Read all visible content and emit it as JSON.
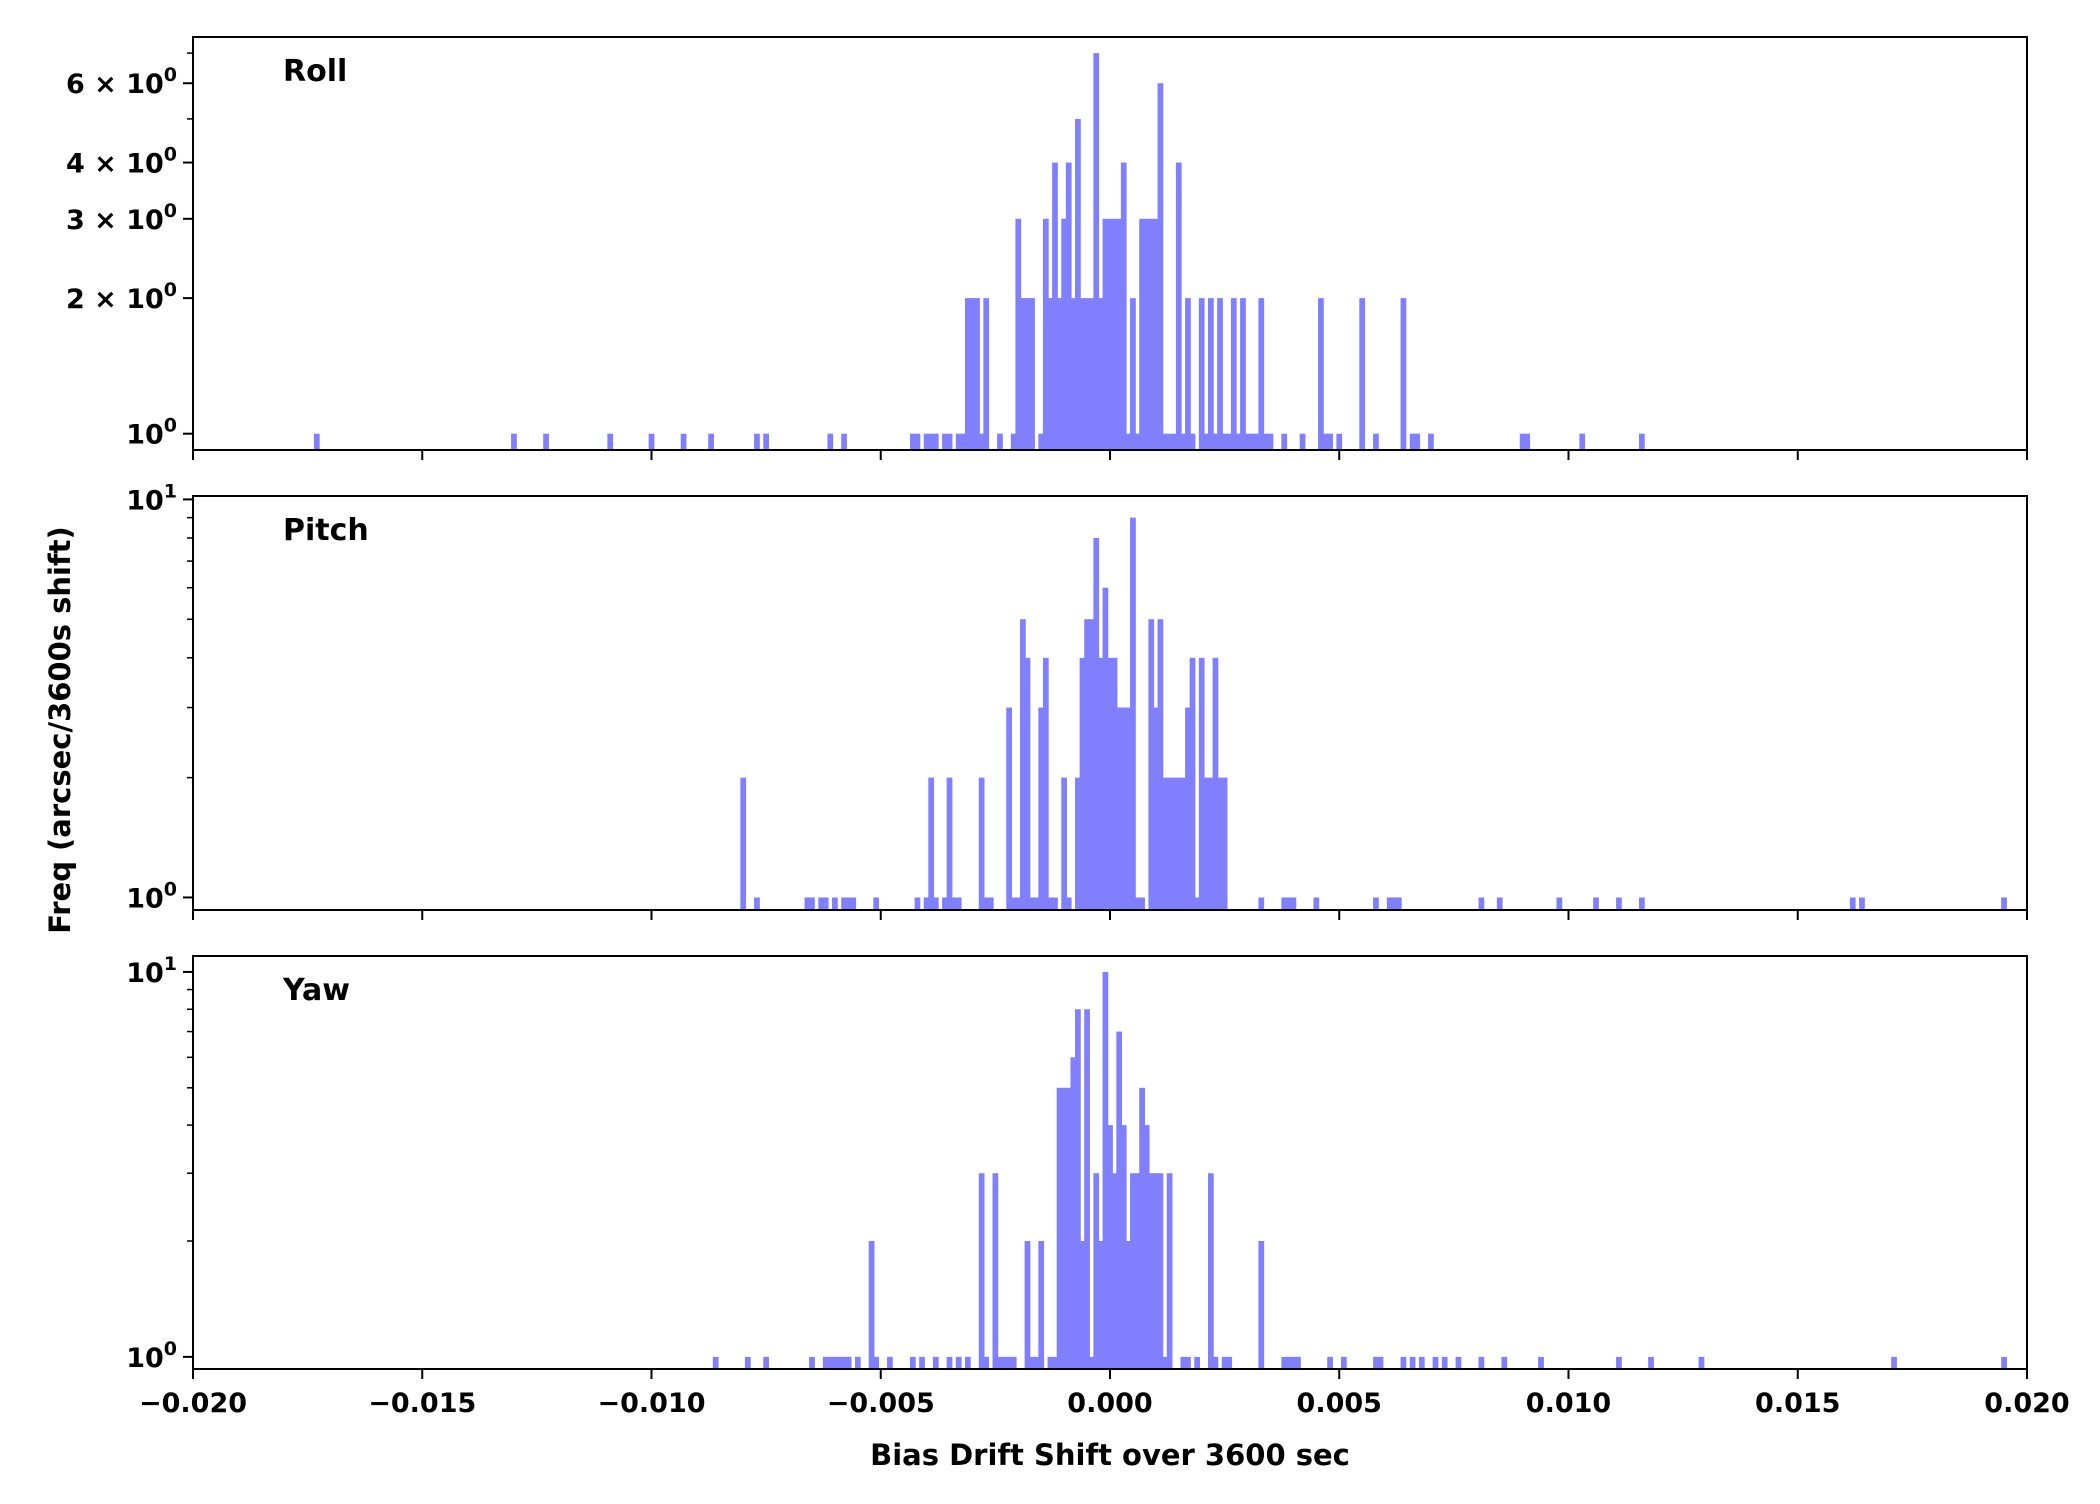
{
  "chart_data": {
    "type": "bar",
    "xlabel": "Bias Drift Shift over 3600 sec",
    "ylabel": "Freq (arcsec/3600s shift)",
    "xlim": [
      -0.02,
      0.02
    ],
    "x_ticks": [
      -0.02,
      -0.015,
      -0.01,
      -0.005,
      0.0,
      0.005,
      0.01,
      0.015,
      0.02
    ],
    "x_tick_labels": [
      "−0.020",
      "−0.015",
      "−0.010",
      "−0.005",
      "0.000",
      "0.005",
      "0.010",
      "0.015",
      "0.020"
    ],
    "bar_color": "#8080ff",
    "bin_width": 0.0001333,
    "y_scale": "log",
    "grid": false,
    "panels": [
      {
        "title": "Roll",
        "ylim": [
          0.92,
          7.6
        ],
        "y_ticks": [
          {
            "value": 1,
            "base": "10",
            "exp": "0"
          },
          {
            "value": 2,
            "coef": "2",
            "base": "10",
            "exp": "0"
          },
          {
            "value": 3,
            "coef": "3",
            "base": "10",
            "exp": "0"
          },
          {
            "value": 4,
            "coef": "4",
            "base": "10",
            "exp": "0"
          },
          {
            "value": 6,
            "coef": "6",
            "base": "10",
            "exp": "0"
          }
        ],
        "minor_ticks": [
          5,
          7
        ],
        "bins": [
          [
            -0.0173,
            1
          ],
          [
            -0.013,
            1
          ],
          [
            -0.0123,
            1
          ],
          [
            -0.0109,
            1
          ],
          [
            -0.01,
            1
          ],
          [
            -0.0093,
            1
          ],
          [
            -0.0087,
            1
          ],
          [
            -0.0077,
            1
          ],
          [
            -0.0075,
            1
          ],
          [
            -0.0061,
            1
          ],
          [
            -0.0058,
            1
          ],
          [
            -0.0043,
            1
          ],
          [
            -0.0042,
            1
          ],
          [
            -0.004,
            1
          ],
          [
            -0.0039,
            1
          ],
          [
            -0.0038,
            1
          ],
          [
            -0.0036,
            1
          ],
          [
            -0.0035,
            1
          ],
          [
            -0.0033,
            1
          ],
          [
            -0.0032,
            1
          ],
          [
            -0.0031,
            2
          ],
          [
            -0.003,
            2
          ],
          [
            -0.0029,
            2
          ],
          [
            -0.0028,
            1
          ],
          [
            -0.0027,
            2
          ],
          [
            -0.0024,
            1
          ],
          [
            -0.0021,
            1
          ],
          [
            -0.002,
            3
          ],
          [
            -0.0019,
            2
          ],
          [
            -0.0018,
            2
          ],
          [
            -0.0017,
            2
          ],
          [
            -0.0015,
            1
          ],
          [
            -0.0014,
            3
          ],
          [
            -0.0013,
            2
          ],
          [
            -0.0012,
            4
          ],
          [
            -0.0011,
            2
          ],
          [
            -0.001,
            3
          ],
          [
            -0.0009,
            4
          ],
          [
            -0.0008,
            2
          ],
          [
            -0.0007,
            5
          ],
          [
            -0.0006,
            2
          ],
          [
            -0.0005,
            2
          ],
          [
            -0.0004,
            2
          ],
          [
            -0.0003,
            7
          ],
          [
            -0.0002,
            2
          ],
          [
            -0.0001,
            3
          ],
          [
            0.0,
            3
          ],
          [
            0.0001,
            3
          ],
          [
            0.0002,
            3
          ],
          [
            0.0003,
            4
          ],
          [
            0.0004,
            1
          ],
          [
            0.0005,
            2
          ],
          [
            0.0006,
            1
          ],
          [
            0.0007,
            3
          ],
          [
            0.0008,
            3
          ],
          [
            0.0009,
            3
          ],
          [
            0.001,
            3
          ],
          [
            0.0011,
            6
          ],
          [
            0.0012,
            1
          ],
          [
            0.0013,
            1
          ],
          [
            0.0014,
            1
          ],
          [
            0.0015,
            4
          ],
          [
            0.0016,
            1
          ],
          [
            0.0017,
            2
          ],
          [
            0.0018,
            1
          ],
          [
            0.002,
            2
          ],
          [
            0.0021,
            1
          ],
          [
            0.0022,
            2
          ],
          [
            0.0023,
            1
          ],
          [
            0.0024,
            2
          ],
          [
            0.0025,
            1
          ],
          [
            0.0026,
            1
          ],
          [
            0.0027,
            2
          ],
          [
            0.0028,
            1
          ],
          [
            0.0029,
            2
          ],
          [
            0.003,
            1
          ],
          [
            0.0031,
            1
          ],
          [
            0.0032,
            1
          ],
          [
            0.0033,
            2
          ],
          [
            0.0034,
            1
          ],
          [
            0.0035,
            1
          ],
          [
            0.0038,
            1
          ],
          [
            0.0042,
            1
          ],
          [
            0.0046,
            2
          ],
          [
            0.0047,
            1
          ],
          [
            0.0048,
            1
          ],
          [
            0.005,
            1
          ],
          [
            0.0055,
            2
          ],
          [
            0.0058,
            1
          ],
          [
            0.0064,
            2
          ],
          [
            0.0066,
            1
          ],
          [
            0.0067,
            1
          ],
          [
            0.007,
            1
          ],
          [
            0.009,
            1
          ],
          [
            0.0091,
            1
          ],
          [
            0.0103,
            1
          ],
          [
            0.0116,
            1
          ]
        ]
      },
      {
        "title": "Pitch",
        "ylim": [
          0.93,
          10.2
        ],
        "y_ticks": [
          {
            "value": 1,
            "base": "10",
            "exp": "0"
          },
          {
            "value": 10,
            "base": "10",
            "exp": "1"
          }
        ],
        "minor_ticks": [
          2,
          3,
          4,
          5,
          6,
          7,
          8,
          9
        ],
        "bins": [
          [
            -0.008,
            2
          ],
          [
            -0.0077,
            1
          ],
          [
            -0.0066,
            1
          ],
          [
            -0.0065,
            1
          ],
          [
            -0.0063,
            1
          ],
          [
            -0.0062,
            1
          ],
          [
            -0.006,
            1
          ],
          [
            -0.0058,
            1
          ],
          [
            -0.0057,
            1
          ],
          [
            -0.0056,
            1
          ],
          [
            -0.0051,
            1
          ],
          [
            -0.0042,
            1
          ],
          [
            -0.004,
            1
          ],
          [
            -0.0039,
            2
          ],
          [
            -0.0038,
            1
          ],
          [
            -0.0036,
            1
          ],
          [
            -0.0035,
            2
          ],
          [
            -0.0034,
            1
          ],
          [
            -0.0033,
            1
          ],
          [
            -0.0028,
            2
          ],
          [
            -0.0027,
            1
          ],
          [
            -0.0026,
            1
          ],
          [
            -0.0022,
            3
          ],
          [
            -0.0021,
            1
          ],
          [
            -0.002,
            1
          ],
          [
            -0.0019,
            5
          ],
          [
            -0.0018,
            4
          ],
          [
            -0.0017,
            1
          ],
          [
            -0.0016,
            1
          ],
          [
            -0.0015,
            3
          ],
          [
            -0.0014,
            4
          ],
          [
            -0.0013,
            1
          ],
          [
            -0.0012,
            1
          ],
          [
            -0.001,
            2
          ],
          [
            -0.0009,
            1
          ],
          [
            -0.0007,
            2
          ],
          [
            -0.0006,
            4
          ],
          [
            -0.0005,
            5
          ],
          [
            -0.0004,
            5
          ],
          [
            -0.0003,
            8
          ],
          [
            -0.0002,
            4
          ],
          [
            -0.0001,
            6
          ],
          [
            0.0,
            4
          ],
          [
            0.0001,
            4
          ],
          [
            0.0002,
            3
          ],
          [
            0.0003,
            3
          ],
          [
            0.0004,
            3
          ],
          [
            0.0005,
            9
          ],
          [
            0.0006,
            1
          ],
          [
            0.0007,
            1
          ],
          [
            0.0009,
            5
          ],
          [
            0.001,
            3
          ],
          [
            0.0011,
            5
          ],
          [
            0.0012,
            2
          ],
          [
            0.0013,
            2
          ],
          [
            0.0014,
            2
          ],
          [
            0.0015,
            2
          ],
          [
            0.0016,
            2
          ],
          [
            0.0017,
            3
          ],
          [
            0.0018,
            4
          ],
          [
            0.0019,
            1
          ],
          [
            0.002,
            4
          ],
          [
            0.0021,
            2
          ],
          [
            0.0022,
            2
          ],
          [
            0.0023,
            4
          ],
          [
            0.0024,
            2
          ],
          [
            0.0025,
            2
          ],
          [
            0.0033,
            1
          ],
          [
            0.0038,
            1
          ],
          [
            0.0039,
            1
          ],
          [
            0.004,
            1
          ],
          [
            0.0045,
            1
          ],
          [
            0.0058,
            1
          ],
          [
            0.0061,
            1
          ],
          [
            0.0062,
            1
          ],
          [
            0.0063,
            1
          ],
          [
            0.0081,
            1
          ],
          [
            0.0085,
            1
          ],
          [
            0.0098,
            1
          ],
          [
            0.0106,
            1
          ],
          [
            0.0111,
            1
          ],
          [
            0.0116,
            1
          ],
          [
            0.0162,
            1
          ],
          [
            0.0164,
            1
          ],
          [
            0.0195,
            1
          ]
        ]
      },
      {
        "title": "Yaw",
        "ylim": [
          0.93,
          11.0
        ],
        "y_ticks": [
          {
            "value": 1,
            "base": "10",
            "exp": "0"
          },
          {
            "value": 10,
            "base": "10",
            "exp": "1"
          }
        ],
        "minor_ticks": [
          2,
          3,
          4,
          5,
          6,
          7,
          8,
          9
        ],
        "bins": [
          [
            -0.0086,
            1
          ],
          [
            -0.0079,
            1
          ],
          [
            -0.0075,
            1
          ],
          [
            -0.0065,
            1
          ],
          [
            -0.0062,
            1
          ],
          [
            -0.0061,
            1
          ],
          [
            -0.006,
            1
          ],
          [
            -0.0059,
            1
          ],
          [
            -0.0058,
            1
          ],
          [
            -0.0057,
            1
          ],
          [
            -0.0055,
            1
          ],
          [
            -0.0052,
            2
          ],
          [
            -0.0051,
            1
          ],
          [
            -0.0048,
            1
          ],
          [
            -0.0043,
            1
          ],
          [
            -0.0041,
            1
          ],
          [
            -0.0038,
            1
          ],
          [
            -0.0035,
            1
          ],
          [
            -0.0033,
            1
          ],
          [
            -0.0031,
            1
          ],
          [
            -0.0028,
            3
          ],
          [
            -0.0027,
            1
          ],
          [
            -0.0025,
            3
          ],
          [
            -0.0024,
            1
          ],
          [
            -0.0023,
            1
          ],
          [
            -0.0022,
            1
          ],
          [
            -0.0021,
            1
          ],
          [
            -0.0018,
            2
          ],
          [
            -0.0017,
            1
          ],
          [
            -0.0016,
            1
          ],
          [
            -0.0015,
            2
          ],
          [
            -0.0013,
            1
          ],
          [
            -0.0012,
            1
          ],
          [
            -0.0011,
            5
          ],
          [
            -0.001,
            5
          ],
          [
            -0.0009,
            5
          ],
          [
            -0.0008,
            6
          ],
          [
            -0.0007,
            8
          ],
          [
            -0.0006,
            2
          ],
          [
            -0.0005,
            8
          ],
          [
            -0.0004,
            1
          ],
          [
            -0.0003,
            3
          ],
          [
            -0.0002,
            2
          ],
          [
            -0.0001,
            10
          ],
          [
            0.0,
            4
          ],
          [
            0.0001,
            3
          ],
          [
            0.0002,
            7
          ],
          [
            0.0003,
            4
          ],
          [
            0.0004,
            2
          ],
          [
            0.0005,
            3
          ],
          [
            0.0006,
            3
          ],
          [
            0.0007,
            5
          ],
          [
            0.0008,
            4
          ],
          [
            0.0009,
            3
          ],
          [
            0.001,
            3
          ],
          [
            0.0011,
            3
          ],
          [
            0.0012,
            1
          ],
          [
            0.0013,
            3
          ],
          [
            0.0016,
            1
          ],
          [
            0.0017,
            1
          ],
          [
            0.0019,
            1
          ],
          [
            0.0022,
            3
          ],
          [
            0.0023,
            1
          ],
          [
            0.0025,
            1
          ],
          [
            0.0026,
            1
          ],
          [
            0.0033,
            2
          ],
          [
            0.0038,
            1
          ],
          [
            0.0039,
            1
          ],
          [
            0.004,
            1
          ],
          [
            0.0041,
            1
          ],
          [
            0.0048,
            1
          ],
          [
            0.0051,
            1
          ],
          [
            0.0058,
            1
          ],
          [
            0.0059,
            1
          ],
          [
            0.0064,
            1
          ],
          [
            0.0066,
            1
          ],
          [
            0.0068,
            1
          ],
          [
            0.0071,
            1
          ],
          [
            0.0073,
            1
          ],
          [
            0.0076,
            1
          ],
          [
            0.0081,
            1
          ],
          [
            0.0086,
            1
          ],
          [
            0.0094,
            1
          ],
          [
            0.0111,
            1
          ],
          [
            0.0118,
            1
          ],
          [
            0.0129,
            1
          ],
          [
            0.0171,
            1
          ],
          [
            0.0195,
            1
          ]
        ]
      }
    ]
  }
}
